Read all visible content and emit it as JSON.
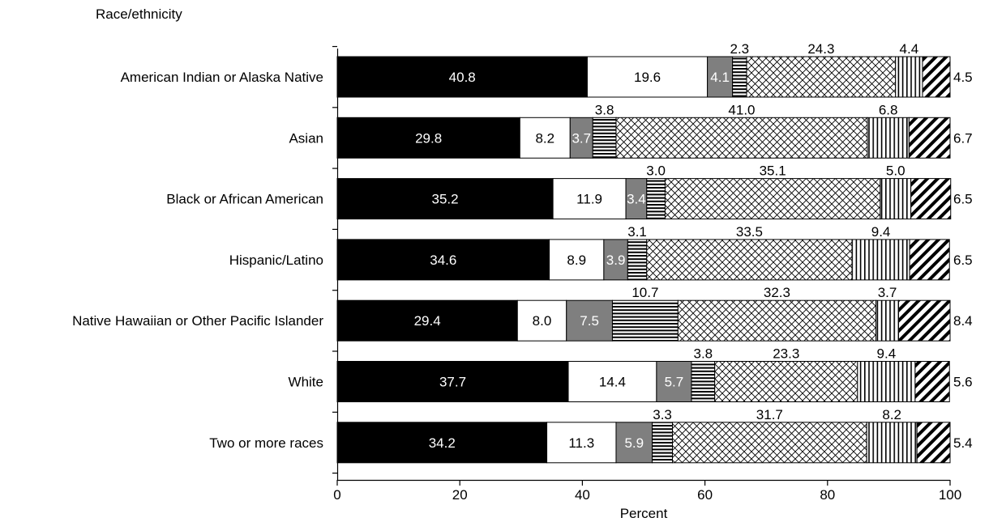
{
  "chart_data": {
    "type": "bar",
    "orientation": "horizontal",
    "stacked": true,
    "title": "",
    "ylabel": "Race/ethnicity",
    "xlabel": "Percent",
    "xlim": [
      0,
      100
    ],
    "xticks": [
      "0",
      "20",
      "40",
      "60",
      "80",
      "100"
    ],
    "grid": false,
    "legend": "none",
    "categories": [
      "American Indian or Alaska Native",
      "Asian",
      "Black or African American",
      "Hispanic/Latino",
      "Native Hawaiian or Other Pacific Islander",
      "White",
      "Two or more races"
    ],
    "series": [
      {
        "fill": "#000000",
        "pattern": "solid-black",
        "values": [
          40.8,
          29.8,
          35.2,
          34.6,
          29.4,
          37.7,
          34.2
        ]
      },
      {
        "fill": "#ffffff",
        "pattern": "solid-white",
        "values": [
          19.6,
          8.2,
          11.9,
          8.9,
          8.0,
          14.4,
          11.3
        ]
      },
      {
        "fill": "#7f7f7f",
        "pattern": "solid-gray",
        "values": [
          4.1,
          3.7,
          3.4,
          3.9,
          7.5,
          5.7,
          5.9
        ]
      },
      {
        "fill": "#ffffff",
        "pattern": "horizontal-stripes",
        "values": [
          2.3,
          3.8,
          3.0,
          3.1,
          10.7,
          3.8,
          3.3
        ]
      },
      {
        "fill": "#ffffff",
        "pattern": "crosshatch",
        "values": [
          24.3,
          41.0,
          35.1,
          33.5,
          32.3,
          23.3,
          31.7
        ]
      },
      {
        "fill": "#ffffff",
        "pattern": "vertical-stripes",
        "values": [
          4.4,
          6.8,
          5.0,
          9.4,
          3.7,
          9.4,
          8.2
        ]
      },
      {
        "fill": "#ffffff",
        "pattern": "diagonal-stripes",
        "values": [
          4.5,
          6.7,
          6.5,
          6.5,
          8.4,
          5.6,
          5.4
        ]
      }
    ]
  }
}
